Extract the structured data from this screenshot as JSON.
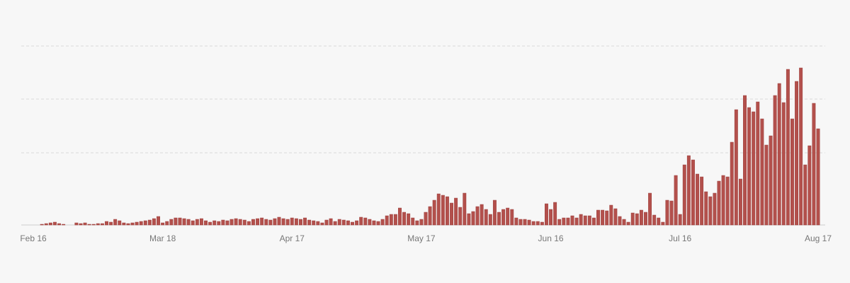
{
  "chart_data": {
    "type": "bar",
    "color": "#b3504c",
    "grid_lines": [
      102,
      178,
      253
    ],
    "ylim": [
      0,
      280
    ],
    "categories": [
      "Feb 16",
      null,
      null,
      null,
      null,
      null,
      null,
      null,
      null,
      null,
      null,
      null,
      null,
      null,
      null,
      null,
      null,
      null,
      null,
      null,
      null,
      null,
      null,
      null,
      null,
      null,
      null,
      null,
      null,
      null,
      "Mar 18",
      null,
      null,
      null,
      null,
      null,
      null,
      null,
      null,
      null,
      null,
      null,
      null,
      null,
      null,
      null,
      null,
      null,
      null,
      null,
      null,
      null,
      null,
      null,
      null,
      null,
      null,
      null,
      null,
      null,
      "Apr 17",
      null,
      null,
      null,
      null,
      null,
      null,
      null,
      null,
      null,
      null,
      null,
      null,
      null,
      null,
      null,
      null,
      null,
      null,
      null,
      null,
      null,
      null,
      null,
      null,
      null,
      null,
      null,
      null,
      null,
      "May 17",
      null,
      null,
      null,
      null,
      null,
      null,
      null,
      null,
      null,
      null,
      null,
      null,
      null,
      null,
      null,
      null,
      null,
      null,
      null,
      null,
      null,
      null,
      null,
      null,
      null,
      null,
      null,
      null,
      null,
      "Jun 16",
      null,
      null,
      null,
      null,
      null,
      null,
      null,
      null,
      null,
      null,
      null,
      null,
      null,
      null,
      null,
      null,
      null,
      null,
      null,
      null,
      null,
      null,
      null,
      null,
      null,
      null,
      null,
      null,
      null,
      "Jul 16",
      null,
      null,
      null,
      null,
      null,
      null,
      null,
      null,
      null,
      null,
      null,
      null,
      null,
      null,
      null,
      null,
      null,
      null,
      null,
      null,
      null,
      null,
      null,
      null,
      null,
      null,
      null,
      null,
      null,
      null,
      null,
      "Aug 17"
    ],
    "values": [
      0,
      0,
      1,
      2,
      3,
      4,
      2,
      1,
      0,
      0,
      3,
      2,
      3,
      1,
      1,
      2,
      2,
      5,
      4,
      8,
      6,
      3,
      2,
      3,
      4,
      5,
      6,
      7,
      9,
      12,
      3,
      5,
      8,
      10,
      10,
      9,
      8,
      6,
      8,
      9,
      6,
      4,
      6,
      5,
      7,
      6,
      8,
      9,
      8,
      7,
      5,
      8,
      9,
      10,
      8,
      7,
      9,
      11,
      9,
      8,
      10,
      9,
      8,
      10,
      7,
      6,
      5,
      3,
      7,
      9,
      5,
      8,
      7,
      6,
      4,
      6,
      11,
      10,
      8,
      6,
      5,
      8,
      13,
      15,
      15,
      24,
      18,
      16,
      10,
      6,
      8,
      18,
      26,
      35,
      44,
      42,
      40,
      31,
      38,
      25,
      45,
      16,
      19,
      26,
      29,
      22,
      15,
      35,
      18,
      22,
      24,
      22,
      10,
      8,
      8,
      7,
      5,
      5,
      4,
      30,
      22,
      32,
      8,
      10,
      10,
      13,
      10,
      15,
      13,
      13,
      10,
      21,
      21,
      20,
      28,
      23,
      12,
      8,
      4,
      17,
      16,
      21,
      18,
      45,
      14,
      10,
      4,
      35,
      34,
      70,
      15,
      85,
      98,
      92,
      72,
      68,
      47,
      40,
      45,
      62,
      70,
      68,
      117,
      163,
      65,
      183,
      166,
      160,
      174,
      150,
      113,
      126,
      183,
      200,
      173,
      220,
      150,
      203,
      222,
      85,
      112,
      172,
      136
    ]
  }
}
